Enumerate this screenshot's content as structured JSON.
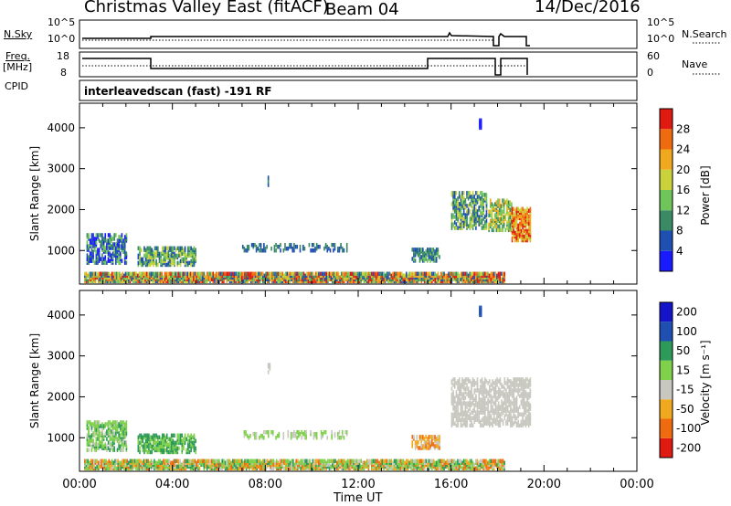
{
  "header": {
    "title": "Christmas Valley East (fitACF)",
    "beam": "Beam 04",
    "date": "14/Dec/2016"
  },
  "panels": {
    "nsky": {
      "label": "N.Sky",
      "tick_hi": "10^5",
      "tick_lo": "10^0",
      "right_label": "N.Search",
      "right_tick_hi": "10^5",
      "right_tick_lo": "10^0"
    },
    "freq": {
      "label_top": "Freq.",
      "label_unit": "[MHz]",
      "tick_hi": "18",
      "tick_lo": "8",
      "right_label": "Nave",
      "right_tick_hi": "60",
      "right_tick_lo": "0"
    },
    "cpid": {
      "label": "CPID",
      "text": "interleavedscan (fast) -191 RF"
    }
  },
  "colors": {
    "power": [
      "#1a1aff",
      "#1f4fb0",
      "#3a8a64",
      "#6fc45a",
      "#c9d23a",
      "#f0a81e",
      "#f06a10",
      "#e01a10"
    ],
    "velocity": [
      "#e01a10",
      "#f06a10",
      "#f0a81e",
      "#c8c8c0",
      "#7fd04a",
      "#2e9a5a",
      "#1f4fb0",
      "#1414c8"
    ],
    "ground_scatter": "#c8c8c0"
  },
  "chart_data": [
    {
      "type": "heatmap",
      "name": "power",
      "ylabel": "Slant Range [km]",
      "yticks": [
        "1000",
        "2000",
        "3000",
        "4000"
      ],
      "ylim": [
        180,
        4600
      ],
      "xlim": [
        0,
        24
      ],
      "colorbar_label": "Power [dB]",
      "colorbar_ticks": [
        "4",
        "8",
        "12",
        "16",
        "20",
        "24",
        "28"
      ],
      "colorbar_range": [
        0,
        32
      ]
    },
    {
      "type": "heatmap",
      "name": "velocity",
      "ylabel": "Slant Range [km]",
      "yticks": [
        "1000",
        "2000",
        "3000",
        "4000"
      ],
      "ylim": [
        180,
        4600
      ],
      "xlim": [
        0,
        24
      ],
      "colorbar_label": "Velocity [m s⁻¹]",
      "colorbar_ticks": [
        "-200",
        "-100",
        "-50",
        "-15",
        "15",
        "50",
        "100",
        "200"
      ]
    }
  ],
  "xaxis": {
    "label": "Time UT",
    "ticks": [
      "00:00",
      "04:00",
      "08:00",
      "12:00",
      "16:00",
      "20:00",
      "00:00"
    ]
  }
}
